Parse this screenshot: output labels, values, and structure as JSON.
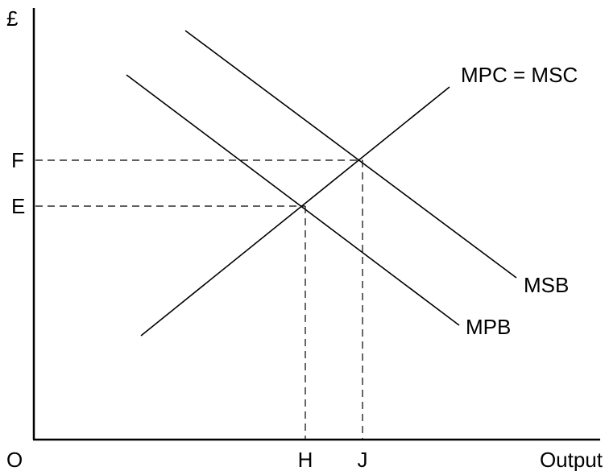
{
  "axes": {
    "y_label": "£",
    "x_label": "Output",
    "origin_label": "O"
  },
  "price_levels": {
    "F": "F",
    "E": "E"
  },
  "quantity_levels": {
    "H": "H",
    "J": "J"
  },
  "curves": {
    "supply_cost": "MPC = MSC",
    "social_benefit": "MSB",
    "private_benefit": "MPB"
  }
}
